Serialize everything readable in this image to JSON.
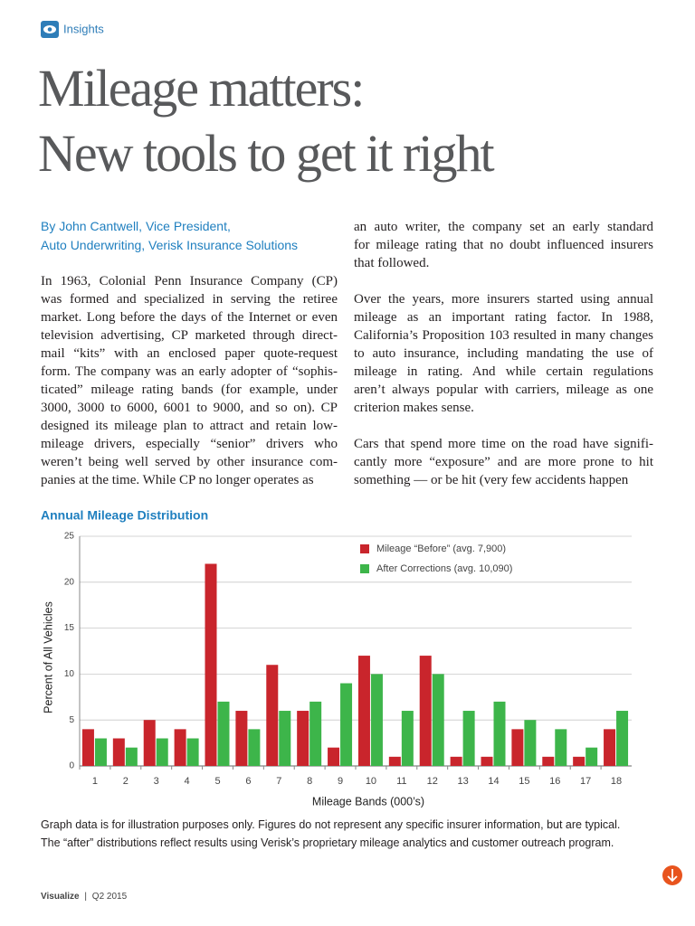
{
  "header": {
    "section": "Insights"
  },
  "title": {
    "lines": [
      "Mileage matters:",
      "New tools to get it right"
    ]
  },
  "byline": {
    "lines": [
      "By John Cantwell, Vice President,",
      "Auto Underwriting, Verisk Insurance Solutions"
    ]
  },
  "body": {
    "columns": [
      [
        [
          "In 1963, Colonial Penn Insurance Company (CP)",
          "was formed and specialized in serving the retiree",
          "market. Long before the days of the Internet or even",
          "television advertising, CP marketed through direct-",
          "mail “kits” with an enclosed paper quote-request",
          "form. The company was an early adopter of “sophis-",
          "ticated” mileage rating bands (for example, under",
          "3000, 3000 to 6000, 6001 to 9000, and so on). CP",
          "designed its mileage plan to attract and retain low-",
          "mileage drivers, especially “senior” drivers who",
          "weren’t being well served by other insurance com-",
          "panies at the time. While CP no longer operates as"
        ]
      ],
      [
        [
          "an auto writer, the company set an early standard",
          "for mileage rating that no doubt influenced insurers",
          "that followed."
        ],
        [
          "Over the years, more insurers started using annual",
          "mileage as an important rating factor. In 1988,",
          "California’s Proposition 103 resulted in many changes",
          "to auto insurance, including mandating the use of",
          "mileage in rating. And while certain regulations",
          "aren’t always popular with carriers, mileage as one",
          "criterion makes sense."
        ],
        [
          "Cars that spend more time on the road have signifi-",
          "cantly more “exposure” and are more prone to hit",
          "something — or be hit (very few accidents happen"
        ]
      ]
    ]
  },
  "chart_data": {
    "type": "bar",
    "title": "Annual Mileage Distribution",
    "categories": [
      "1",
      "2",
      "3",
      "4",
      "5",
      "6",
      "7",
      "8",
      "9",
      "10",
      "11",
      "12",
      "13",
      "14",
      "15",
      "16",
      "17",
      "18"
    ],
    "series": [
      {
        "name": "Mileage “Before” (avg. 7,900)",
        "color": "#c9252c",
        "values": [
          4,
          3,
          5,
          4,
          22,
          6,
          11,
          6,
          2,
          12,
          1,
          12,
          1,
          1,
          4,
          1,
          1,
          4
        ]
      },
      {
        "name": "After Corrections (avg. 10,090)",
        "color": "#3db54a",
        "values": [
          3,
          2,
          3,
          3,
          7,
          4,
          6,
          7,
          9,
          10,
          6,
          10,
          6,
          7,
          5,
          4,
          2,
          6
        ]
      }
    ],
    "ylim": [
      0,
      25
    ],
    "yticks": [
      0,
      5,
      10,
      15,
      20,
      25
    ],
    "grid": true,
    "legend": "top-right",
    "xlabel": "Mileage Bands (000’s)",
    "ylabel": "Percent of All Vehicles"
  },
  "caption": {
    "lines": [
      "Graph data is for illustration purposes only. Figures do not represent any specific insurer information, but are typical.",
      "The “after” distributions reflect results using Verisk’s proprietary mileage analytics and customer outreach program."
    ]
  },
  "footer": {
    "publication": "Visualize",
    "separator": "|",
    "issue": "Q2 2015"
  }
}
